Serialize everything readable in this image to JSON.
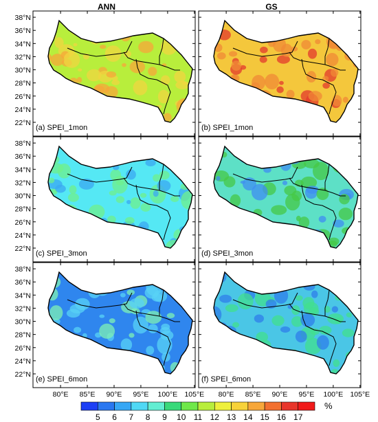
{
  "columns": [
    "ANN",
    "GS"
  ],
  "panels": [
    {
      "label": "(a) SPEI_1mon",
      "fill": "#b8ee3c",
      "hot": "#f0d640",
      "hot2": "#f7a73a"
    },
    {
      "label": "(b) SPEI_1mon",
      "fill": "#f4c73c",
      "hot": "#f08a35",
      "hot2": "#e33a2c"
    },
    {
      "label": "(c) SPEI_3mon",
      "fill": "#55e8f4",
      "hot": "#6ff08c",
      "hot2": "#3ba8f2"
    },
    {
      "label": "(d) SPEI_3mon",
      "fill": "#5de0c6",
      "hot": "#45c845",
      "hot2": "#3f8df2"
    },
    {
      "label": "(e) SPEI_6mon",
      "fill": "#2f86ee",
      "hot": "#58d2f6",
      "hot2": "#7ff0b4"
    },
    {
      "label": "(f) SPEI_6mon",
      "fill": "#4ac6e6",
      "hot": "#42df8e",
      "hot2": "#2f7eea"
    }
  ],
  "y_ticks": [
    "38°N",
    "36°N",
    "34°N",
    "32°N",
    "30°N",
    "28°N",
    "26°N",
    "24°N",
    "22°N"
  ],
  "x_ticks": [
    "80°E",
    "85°E",
    "90°E",
    "95°E",
    "100°E",
    "105°E"
  ],
  "colorbar": {
    "labels": [
      "5",
      "6",
      "7",
      "8",
      "9",
      "10",
      "11",
      "12",
      "13",
      "14",
      "15",
      "16",
      "17"
    ],
    "unit": "%",
    "colors": [
      "#1c3ff5",
      "#2a77f0",
      "#37a7f5",
      "#50d8f5",
      "#63eed2",
      "#39d97a",
      "#6fe84a",
      "#b8ee3c",
      "#eef03c",
      "#f7d23a",
      "#f7a73a",
      "#f2702f",
      "#e8352b",
      "#f01a1a"
    ]
  }
}
